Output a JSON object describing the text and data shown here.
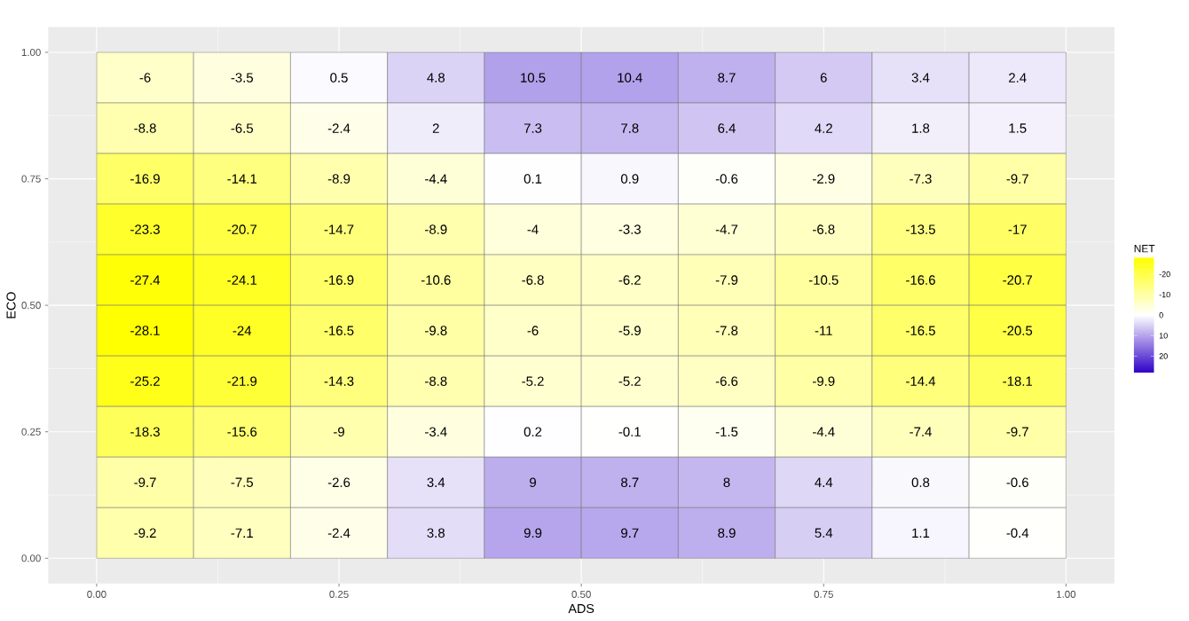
{
  "chart_data": {
    "type": "heatmap",
    "xlabel": "ADS",
    "ylabel": "ECO",
    "clabel": "NET",
    "x": [
      0.05,
      0.15,
      0.25,
      0.35,
      0.45,
      0.55,
      0.65,
      0.75,
      0.85,
      0.95
    ],
    "y": [
      0.95,
      0.85,
      0.75,
      0.65,
      0.55,
      0.45,
      0.35,
      0.25,
      0.15,
      0.05
    ],
    "cells": [
      [
        -6,
        -3.5,
        0.5,
        4.8,
        10.5,
        10.4,
        8.7,
        6,
        3.4,
        2.4
      ],
      [
        -8.8,
        -6.5,
        -2.4,
        2,
        7.3,
        7.8,
        6.4,
        4.2,
        1.8,
        1.5
      ],
      [
        -16.9,
        -14.1,
        -8.9,
        -4.4,
        0.1,
        0.9,
        -0.6,
        -2.9,
        -7.3,
        -9.7
      ],
      [
        -23.3,
        -20.7,
        -14.7,
        -8.9,
        -4,
        -3.3,
        -4.7,
        -6.8,
        -13.5,
        -17
      ],
      [
        -27.4,
        -24.1,
        -16.9,
        -10.6,
        -6.8,
        -6.2,
        -7.9,
        -10.5,
        -16.6,
        -20.7
      ],
      [
        -28.1,
        -24,
        -16.5,
        -9.8,
        -6,
        -5.9,
        -7.8,
        -11,
        -16.5,
        -20.5
      ],
      [
        -25.2,
        -21.9,
        -14.3,
        -8.8,
        -5.2,
        -5.2,
        -6.6,
        -9.9,
        -14.4,
        -18.1
      ],
      [
        -18.3,
        -15.6,
        -9,
        -3.4,
        0.2,
        -0.1,
        -1.5,
        -4.4,
        -7.4,
        -9.7
      ],
      [
        -9.7,
        -7.5,
        -2.6,
        3.4,
        9,
        8.7,
        8,
        4.4,
        0.8,
        -0.6
      ],
      [
        -9.2,
        -7.1,
        -2.4,
        3.8,
        9.9,
        9.7,
        8.9,
        5.4,
        1.1,
        -0.4
      ]
    ],
    "data_labels": true,
    "colors": [
      "#ffff00",
      "#ffffff",
      "#2f00c8"
    ],
    "clim": [
      -28.1,
      28.1
    ],
    "cticks": [
      -20,
      -10,
      0,
      10,
      20
    ],
    "xlim": [
      -0.05,
      1.05
    ],
    "ylim": [
      -0.05,
      1.05
    ],
    "xticks": [
      {
        "value": 0,
        "label": "0.00"
      },
      0.25,
      {
        "value": 0.5,
        "label": "0.50"
      },
      0.75,
      {
        "value": 1,
        "label": "1.00"
      }
    ],
    "yticks": [
      {
        "value": 0,
        "label": "0.00"
      },
      0.25,
      {
        "value": 0.5,
        "label": "0.50"
      },
      0.75,
      {
        "value": 1,
        "label": "1.00"
      }
    ],
    "grid": true
  }
}
